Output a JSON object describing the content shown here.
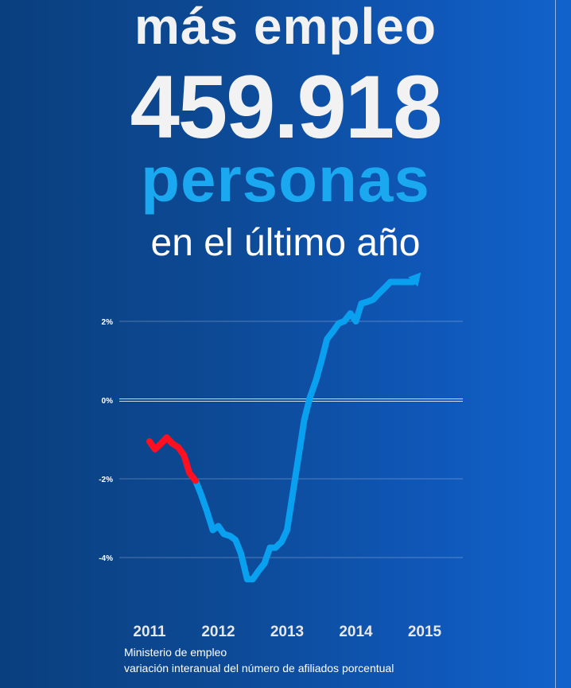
{
  "headline": {
    "line1": "más empleo",
    "line2": "459.918",
    "line3": "personas",
    "line4": "en el último año"
  },
  "source": {
    "line1": "Ministerio de empleo",
    "line2": "variación interanual del número de afiliados porcentual"
  },
  "colors": {
    "white": "#f2f2f2",
    "accent_blue": "#1aa8f0",
    "line_blue": "#0aa0f0",
    "line_red": "#ff1020"
  },
  "chart_data": {
    "type": "line",
    "ylim": [
      -5,
      3
    ],
    "yticks": [
      "2%",
      "0%",
      "-2%",
      "-4%"
    ],
    "xticks": [
      "2011",
      "2012",
      "2013",
      "2014",
      "2015"
    ],
    "grid": true,
    "arrow_at_end": true,
    "series": [
      {
        "color": "#ff1020",
        "x": [
          2011.0,
          2011.08,
          2011.17,
          2011.25,
          2011.33,
          2011.42,
          2011.5,
          2011.58,
          2011.67
        ],
        "y": [
          -1.05,
          -1.25,
          -1.1,
          -0.95,
          -1.1,
          -1.2,
          -1.4,
          -1.85,
          -2.05
        ]
      },
      {
        "color": "#0aa0f0",
        "x": [
          2011.67,
          2011.75,
          2011.83,
          2011.92,
          2012.0,
          2012.08,
          2012.17,
          2012.25,
          2012.33,
          2012.42,
          2012.5,
          2012.58,
          2012.67,
          2012.75,
          2012.83,
          2012.92,
          2013.0,
          2013.08,
          2013.17,
          2013.25,
          2013.33,
          2013.42,
          2013.5,
          2013.58,
          2013.67,
          2013.75,
          2013.83,
          2013.92,
          2014.0,
          2014.08,
          2014.17,
          2014.25,
          2014.33,
          2014.42,
          2014.5,
          2014.58,
          2014.67,
          2014.75,
          2014.83
        ],
        "y": [
          -2.05,
          -2.4,
          -2.8,
          -3.3,
          -3.2,
          -3.4,
          -3.45,
          -3.55,
          -3.9,
          -4.55,
          -4.55,
          -4.35,
          -4.15,
          -3.75,
          -3.75,
          -3.6,
          -3.3,
          -2.4,
          -1.4,
          -0.5,
          0.05,
          0.5,
          1.0,
          1.55,
          1.75,
          1.95,
          2.0,
          2.2,
          2.0,
          2.45,
          2.5,
          2.55,
          2.7,
          2.85,
          3.0,
          3.0,
          3.0,
          3.0,
          3.0
        ]
      }
    ]
  }
}
